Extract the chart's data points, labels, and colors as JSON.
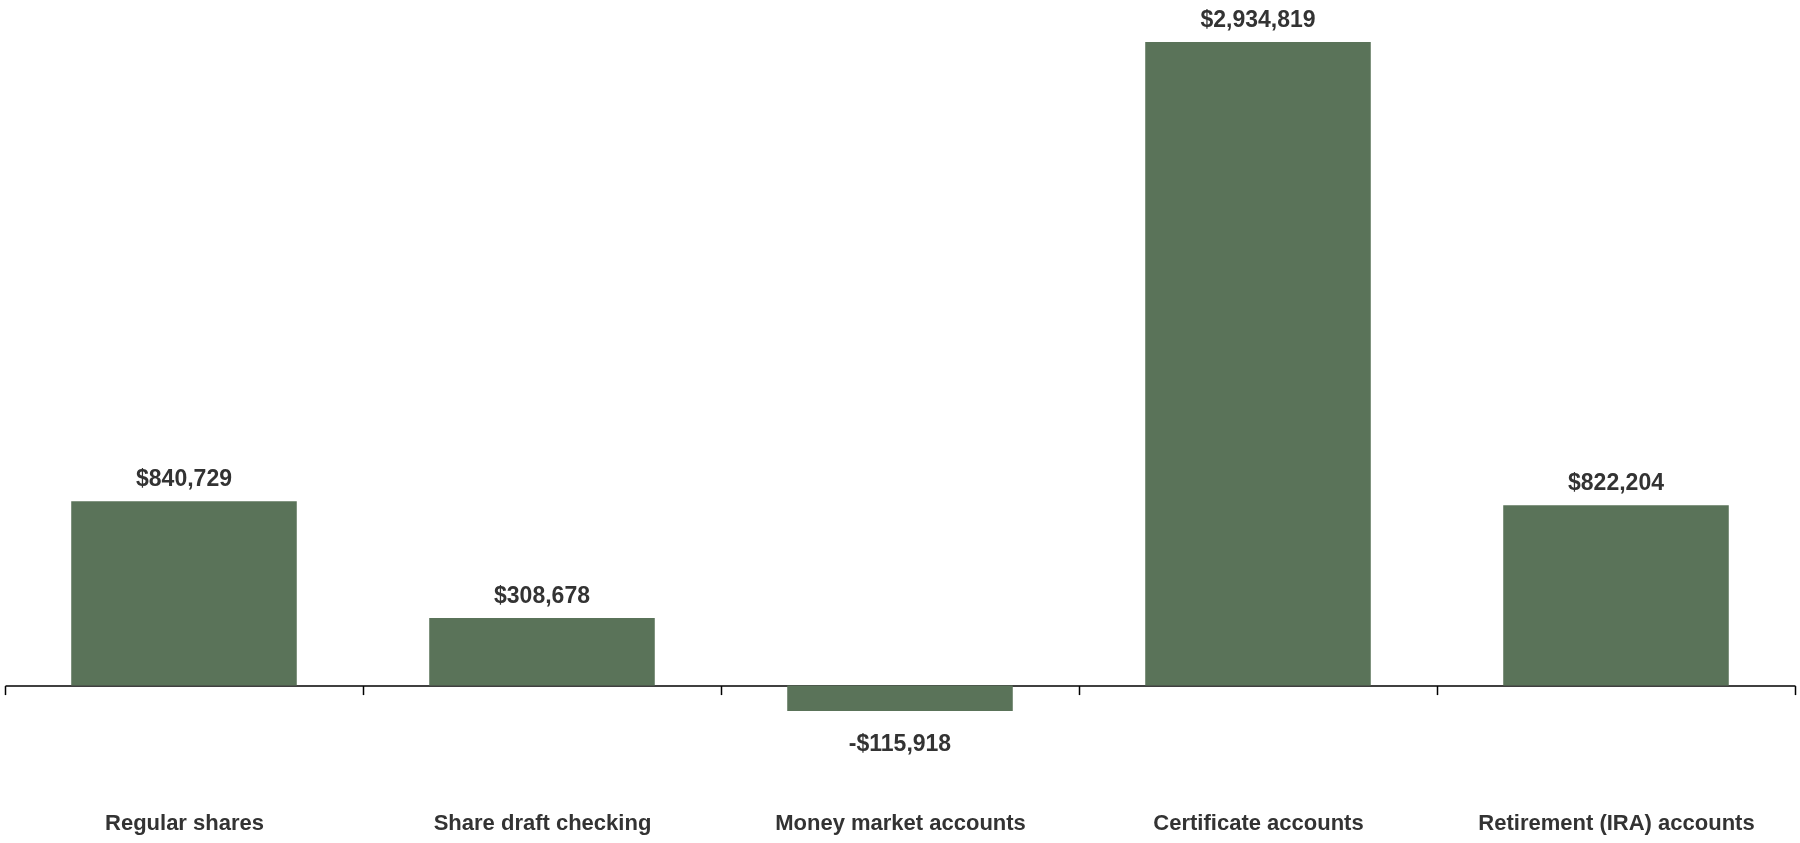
{
  "chart_data": {
    "type": "bar",
    "categories": [
      "Regular shares",
      "Share draft checking",
      "Money market accounts",
      "Certificate accounts",
      "Retirement (IRA) accounts"
    ],
    "values": [
      840729,
      308678,
      -115918,
      2934819,
      822204
    ],
    "value_labels": [
      "$840,729",
      "$308,678",
      "-$115,918",
      "$2,934,819",
      "$822,204"
    ],
    "color": "#5a7359"
  }
}
